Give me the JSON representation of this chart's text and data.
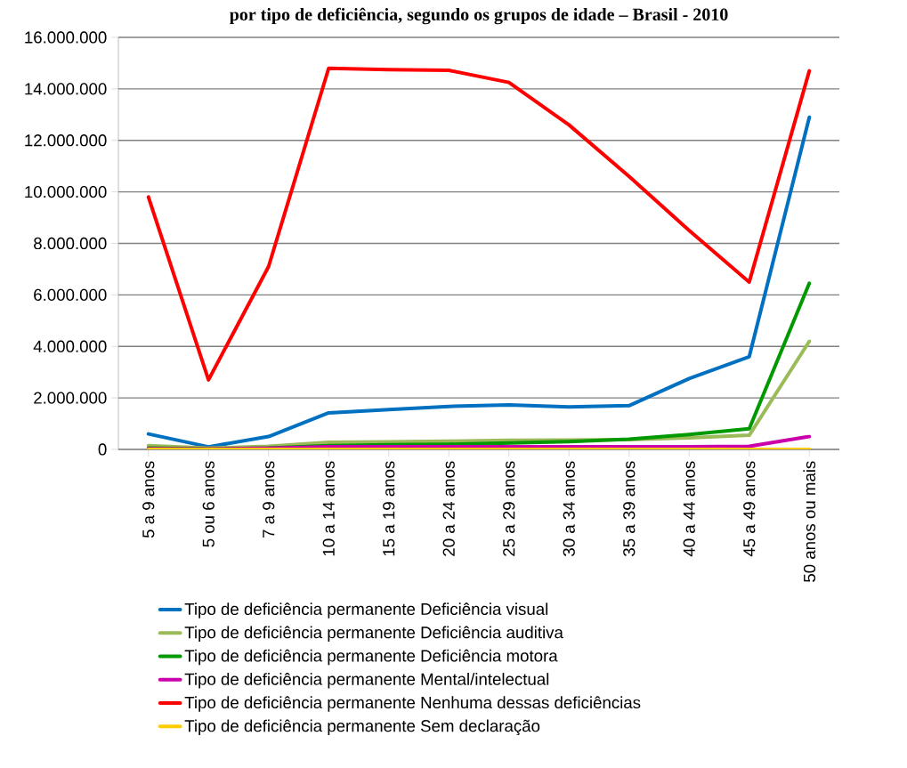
{
  "chart_data": {
    "type": "line",
    "title": "por tipo de deficiência, segundo os grupos de idade – Brasil - 2010",
    "categories": [
      "5 a 9 anos",
      "5 ou 6 anos",
      "7 a 9 anos",
      "10 a 14 anos",
      "15 a 19 anos",
      "20 a 24 anos",
      "25 a 29 anos",
      "30 a 34 anos",
      "35 a 39 anos",
      "40 a 44 anos",
      "45 a 49 anos",
      "50 anos ou mais"
    ],
    "series": [
      {
        "name": "Tipo de deficiência permanente Deficiência visual",
        "color": "#0070c0",
        "values": [
          600000,
          100000,
          500000,
          1420000,
          1550000,
          1670000,
          1730000,
          1650000,
          1700000,
          2750000,
          3600000,
          12900000
        ]
      },
      {
        "name": "Tipo de deficiência permanente Deficiência auditiva",
        "color": "#9bbb59",
        "values": [
          150000,
          50000,
          120000,
          280000,
          290000,
          320000,
          350000,
          360000,
          380000,
          450000,
          550000,
          4200000
        ]
      },
      {
        "name": "Tipo de deficiência permanente Deficiência motora",
        "color": "#009900",
        "values": [
          50000,
          20000,
          50000,
          150000,
          180000,
          200000,
          250000,
          300000,
          400000,
          580000,
          800000,
          6450000
        ]
      },
      {
        "name": "Tipo de deficiência permanente Mental/intelectual",
        "color": "#cc00aa",
        "values": [
          30000,
          20000,
          40000,
          100000,
          100000,
          100000,
          100000,
          100000,
          100000,
          100000,
          120000,
          500000
        ]
      },
      {
        "name": "Tipo de deficiência permanente Nenhuma dessas deficiências",
        "color": "#ff0000",
        "values": [
          9800000,
          2700000,
          7100000,
          14800000,
          14750000,
          14720000,
          14250000,
          12600000,
          10600000,
          8500000,
          6500000,
          14700000
        ]
      },
      {
        "name": "Tipo de deficiência permanente Sem declaração",
        "color": "#ffcc00",
        "values": [
          0,
          0,
          0,
          0,
          0,
          0,
          0,
          0,
          0,
          0,
          0,
          0
        ]
      }
    ],
    "ylim": [
      0,
      16000000
    ],
    "yticks": [
      0,
      {
        "value": 2000000,
        "label": "2.000.000"
      },
      {
        "value": 4000000,
        "label": "4.000.000"
      },
      {
        "value": 6000000,
        "label": "6.000.000"
      },
      {
        "value": 8000000,
        "label": "8.000.000"
      },
      {
        "value": 10000000,
        "label": "10.000.000"
      },
      {
        "value": 12000000,
        "label": "12.000.000"
      },
      {
        "value": 14000000,
        "label": "14.000.000"
      },
      {
        "value": 16000000,
        "label": "16.000.000"
      }
    ],
    "grid": "y",
    "legend": "bottom",
    "marker": "none",
    "line_style": "solid"
  }
}
